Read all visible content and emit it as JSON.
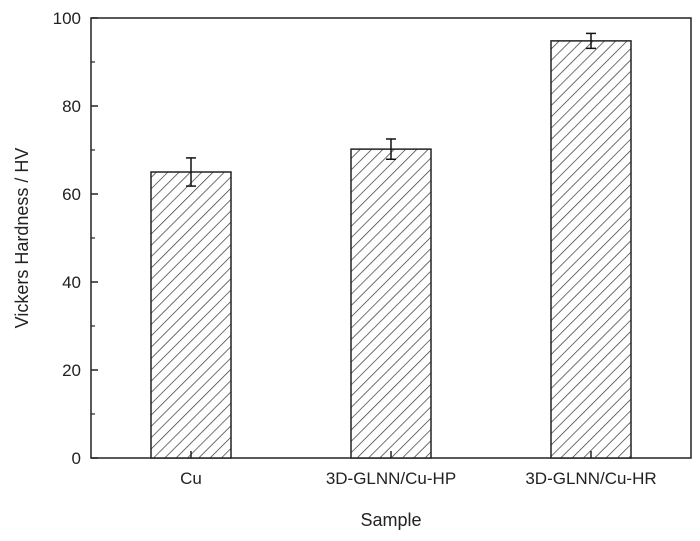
{
  "chart_data": {
    "type": "bar",
    "categories": [
      "Cu",
      "3D-GLNN/Cu-HP",
      "3D-GLNN/Cu-HR"
    ],
    "values": [
      65.0,
      70.2,
      94.8
    ],
    "errors": [
      3.2,
      2.3,
      1.7
    ],
    "xlabel": "Sample",
    "ylabel": "Vickers Hardness / HV",
    "ylim": [
      0,
      100
    ],
    "yticks": [
      0,
      20,
      40,
      60,
      80,
      100
    ],
    "grid": false,
    "bar_fill": "hatched",
    "colors": {
      "bar_stroke": "#222222",
      "hatch": "#333333",
      "axis": "#222222",
      "background": "#ffffff"
    }
  }
}
